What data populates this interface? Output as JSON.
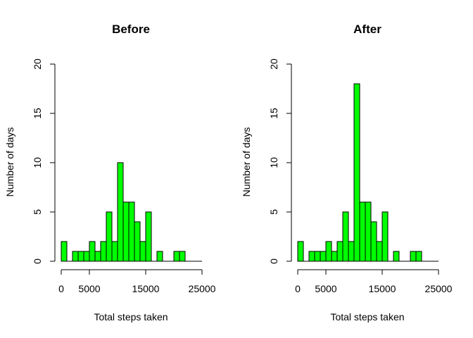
{
  "colors": {
    "bar_fill": "#00ff00",
    "bar_stroke": "#000000",
    "axis": "#000000"
  },
  "chart_data": [
    {
      "type": "bar",
      "title": "Before",
      "xlabel": "Total steps taken",
      "ylabel": "Number of days",
      "bin_width": 1000,
      "bin_start": 0,
      "values": [
        2,
        0,
        1,
        1,
        1,
        2,
        1,
        2,
        5,
        2,
        10,
        6,
        6,
        4,
        2,
        5,
        0,
        1,
        0,
        0,
        1,
        1,
        0,
        0,
        0
      ],
      "xlim": [
        0,
        25000
      ],
      "ylim": [
        0,
        20
      ],
      "x_ticks": [
        "0",
        "5000",
        "15000",
        "25000"
      ],
      "x_tick_values": [
        0,
        5000,
        15000,
        25000
      ],
      "y_ticks": [
        "0",
        "5",
        "10",
        "15",
        "20"
      ],
      "y_tick_values": [
        0,
        5,
        10,
        15,
        20
      ],
      "grid": false
    },
    {
      "type": "bar",
      "title": "After",
      "xlabel": "Total steps taken",
      "ylabel": "Number of days",
      "bin_width": 1000,
      "bin_start": 0,
      "values": [
        2,
        0,
        1,
        1,
        1,
        2,
        1,
        2,
        5,
        2,
        18,
        6,
        6,
        4,
        2,
        5,
        0,
        1,
        0,
        0,
        1,
        1,
        0,
        0,
        0
      ],
      "xlim": [
        0,
        25000
      ],
      "ylim": [
        0,
        20
      ],
      "x_ticks": [
        "0",
        "5000",
        "15000",
        "25000"
      ],
      "x_tick_values": [
        0,
        5000,
        15000,
        25000
      ],
      "y_ticks": [
        "0",
        "5",
        "10",
        "15",
        "20"
      ],
      "y_tick_values": [
        0,
        5,
        10,
        15,
        20
      ],
      "grid": false
    }
  ]
}
